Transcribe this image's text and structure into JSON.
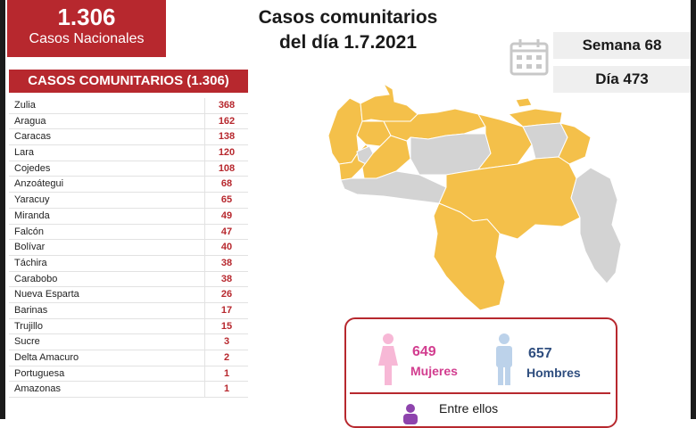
{
  "national": {
    "total": "1.306",
    "label": "Casos Nacionales"
  },
  "title": {
    "line1": "Casos comunitarios",
    "line2": "del día 1.7.2021"
  },
  "week": "Semana 68",
  "day": "Día 473",
  "table": {
    "header": "CASOS COMUNITARIOS (1.306)",
    "rows": [
      {
        "name": "Zulia",
        "value": "368"
      },
      {
        "name": "Aragua",
        "value": "162"
      },
      {
        "name": "Caracas",
        "value": "138"
      },
      {
        "name": "Lara",
        "value": "120"
      },
      {
        "name": "Cojedes",
        "value": "108"
      },
      {
        "name": "Anzoátegui",
        "value": "68"
      },
      {
        "name": "Yaracuy",
        "value": "65"
      },
      {
        "name": "Miranda",
        "value": "49"
      },
      {
        "name": "Falcón",
        "value": "47"
      },
      {
        "name": "Bolívar",
        "value": "40"
      },
      {
        "name": "Táchira",
        "value": "38"
      },
      {
        "name": "Carabobo",
        "value": "38"
      },
      {
        "name": "Nueva Esparta",
        "value": "26"
      },
      {
        "name": "Barinas",
        "value": "17"
      },
      {
        "name": "Trujillo",
        "value": "15"
      },
      {
        "name": "Sucre",
        "value": "3"
      },
      {
        "name": "Delta Amacuro",
        "value": "2"
      },
      {
        "name": "Portuguesa",
        "value": "1"
      },
      {
        "name": "Amazonas",
        "value": "1"
      }
    ]
  },
  "gender": {
    "female_count": "649",
    "female_label": "Mujeres",
    "male_count": "657",
    "male_label": "Hombres",
    "note": "Entre ellos"
  },
  "colors": {
    "accent": "#b7282e",
    "map_cases": "#f4c04a",
    "map_none": "#d3d3d3",
    "female": "#d23d8f",
    "male": "#2f4e7f"
  }
}
